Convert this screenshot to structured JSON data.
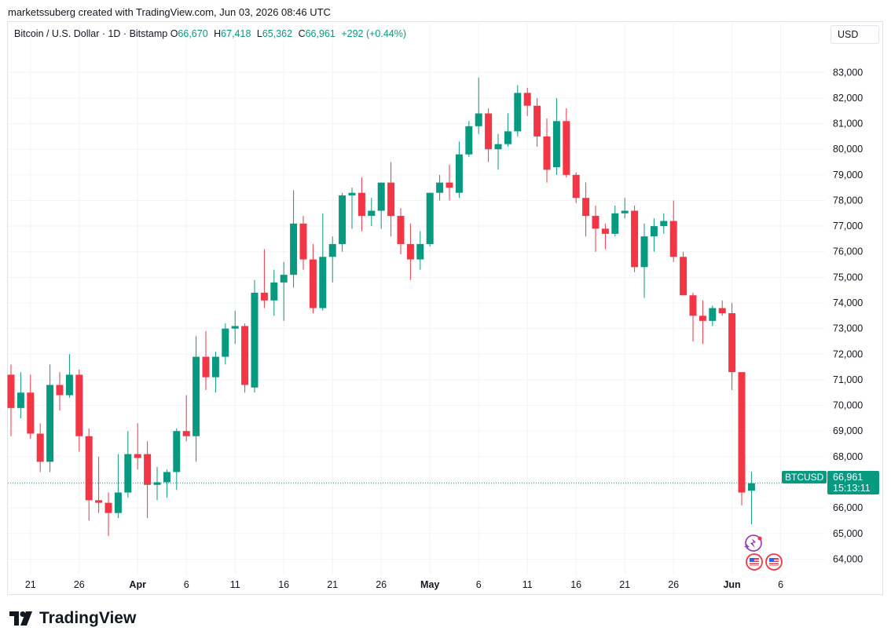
{
  "header": {
    "created_line": "marketssuberg created with TradingView.com, Jun 03, 2026 08:46 UTC"
  },
  "legend": {
    "symbol": "Bitcoin / U.S. Dollar · 1D · Bitstamp",
    "o_label": "O",
    "o_value": "66,670",
    "h_label": "H",
    "h_value": "67,418",
    "l_label": "L",
    "l_value": "65,362",
    "c_label": "C",
    "c_value": "66,961",
    "change": "+292 (+0.44%)"
  },
  "currency_button": "USD",
  "price_tag": {
    "symbol": "BTCUSD",
    "price": "66,961",
    "countdown": "15:13:11"
  },
  "brand": {
    "name": "TradingView"
  },
  "colors": {
    "up": "#089981",
    "down": "#f23645",
    "grid": "#f0f3fa",
    "text": "#131722"
  },
  "chart_data": {
    "type": "candlestick",
    "ylim": [
      63400,
      84050
    ],
    "y_ticks": [
      64000,
      65000,
      66000,
      67000,
      68000,
      69000,
      70000,
      71000,
      72000,
      73000,
      74000,
      75000,
      76000,
      77000,
      78000,
      79000,
      80000,
      81000,
      82000,
      83000
    ],
    "y_tick_labels": [
      "64,000",
      "65,000",
      "66,000",
      "67,000",
      "68,000",
      "69,000",
      "70,000",
      "71,000",
      "72,000",
      "73,000",
      "74,000",
      "75,000",
      "76,000",
      "77,000",
      "78,000",
      "79,000",
      "80,000",
      "81,000",
      "82,000",
      "83,000"
    ],
    "x_ticks": [
      {
        "index": 2,
        "label": "21",
        "bold": false
      },
      {
        "index": 7,
        "label": "26",
        "bold": false
      },
      {
        "index": 13,
        "label": "Apr",
        "bold": true
      },
      {
        "index": 18,
        "label": "6",
        "bold": false
      },
      {
        "index": 23,
        "label": "11",
        "bold": false
      },
      {
        "index": 28,
        "label": "16",
        "bold": false
      },
      {
        "index": 33,
        "label": "21",
        "bold": false
      },
      {
        "index": 38,
        "label": "26",
        "bold": false
      },
      {
        "index": 43,
        "label": "May",
        "bold": true
      },
      {
        "index": 48,
        "label": "6",
        "bold": false
      },
      {
        "index": 53,
        "label": "11",
        "bold": false
      },
      {
        "index": 58,
        "label": "16",
        "bold": false
      },
      {
        "index": 63,
        "label": "21",
        "bold": false
      },
      {
        "index": 68,
        "label": "26",
        "bold": false
      },
      {
        "index": 74,
        "label": "Jun",
        "bold": true
      },
      {
        "index": 79,
        "label": "6",
        "bold": false
      }
    ],
    "last_price": 66961,
    "candles": [
      {
        "o": 71200,
        "h": 71600,
        "l": 68800,
        "c": 69900
      },
      {
        "o": 69900,
        "h": 71300,
        "l": 69500,
        "c": 70500
      },
      {
        "o": 70500,
        "h": 71200,
        "l": 68700,
        "c": 68900
      },
      {
        "o": 68900,
        "h": 69300,
        "l": 67400,
        "c": 67800
      },
      {
        "o": 67800,
        "h": 71600,
        "l": 67400,
        "c": 70800
      },
      {
        "o": 70800,
        "h": 71300,
        "l": 69800,
        "c": 70400
      },
      {
        "o": 70400,
        "h": 72000,
        "l": 70300,
        "c": 71200
      },
      {
        "o": 71200,
        "h": 71400,
        "l": 68200,
        "c": 68800
      },
      {
        "o": 68800,
        "h": 69100,
        "l": 65500,
        "c": 66300
      },
      {
        "o": 66300,
        "h": 68000,
        "l": 65800,
        "c": 66200
      },
      {
        "o": 66200,
        "h": 66600,
        "l": 64900,
        "c": 65800
      },
      {
        "o": 65800,
        "h": 68100,
        "l": 65600,
        "c": 66600
      },
      {
        "o": 66600,
        "h": 69000,
        "l": 66400,
        "c": 68100
      },
      {
        "o": 68100,
        "h": 69300,
        "l": 67500,
        "c": 67950
      },
      {
        "o": 68100,
        "h": 68600,
        "l": 65600,
        "c": 66900
      },
      {
        "o": 66900,
        "h": 67600,
        "l": 66300,
        "c": 67000
      },
      {
        "o": 67000,
        "h": 67500,
        "l": 66400,
        "c": 67400
      },
      {
        "o": 67400,
        "h": 69100,
        "l": 66700,
        "c": 69000
      },
      {
        "o": 69000,
        "h": 70400,
        "l": 68600,
        "c": 68800
      },
      {
        "o": 68800,
        "h": 72700,
        "l": 67800,
        "c": 71900
      },
      {
        "o": 71900,
        "h": 72900,
        "l": 70600,
        "c": 71100
      },
      {
        "o": 71100,
        "h": 72100,
        "l": 70500,
        "c": 71900
      },
      {
        "o": 71900,
        "h": 73200,
        "l": 71600,
        "c": 73000
      },
      {
        "o": 73000,
        "h": 73700,
        "l": 72400,
        "c": 73100
      },
      {
        "o": 73100,
        "h": 73200,
        "l": 70500,
        "c": 70800
      },
      {
        "o": 70700,
        "h": 74900,
        "l": 70500,
        "c": 74400
      },
      {
        "o": 74400,
        "h": 76100,
        "l": 73800,
        "c": 74100
      },
      {
        "o": 74100,
        "h": 75300,
        "l": 73500,
        "c": 74800
      },
      {
        "o": 74800,
        "h": 75600,
        "l": 73300,
        "c": 75100
      },
      {
        "o": 75100,
        "h": 78400,
        "l": 74600,
        "c": 77100
      },
      {
        "o": 77100,
        "h": 77400,
        "l": 75300,
        "c": 75700
      },
      {
        "o": 75700,
        "h": 76300,
        "l": 73600,
        "c": 73800
      },
      {
        "o": 73800,
        "h": 77500,
        "l": 73700,
        "c": 75800
      },
      {
        "o": 75800,
        "h": 76600,
        "l": 74800,
        "c": 76300
      },
      {
        "o": 76300,
        "h": 78300,
        "l": 76000,
        "c": 78200
      },
      {
        "o": 78200,
        "h": 78500,
        "l": 76900,
        "c": 78300
      },
      {
        "o": 78300,
        "h": 78900,
        "l": 76800,
        "c": 77400
      },
      {
        "o": 77400,
        "h": 78100,
        "l": 77000,
        "c": 77600
      },
      {
        "o": 77600,
        "h": 78600,
        "l": 76900,
        "c": 78700
      },
      {
        "o": 78700,
        "h": 79500,
        "l": 76600,
        "c": 77400
      },
      {
        "o": 77400,
        "h": 77700,
        "l": 75900,
        "c": 76300
      },
      {
        "o": 76300,
        "h": 77100,
        "l": 74900,
        "c": 75700
      },
      {
        "o": 75700,
        "h": 76800,
        "l": 75300,
        "c": 76300
      },
      {
        "o": 76300,
        "h": 78300,
        "l": 76200,
        "c": 78300
      },
      {
        "o": 78300,
        "h": 79000,
        "l": 78000,
        "c": 78700
      },
      {
        "o": 78700,
        "h": 79400,
        "l": 78000,
        "c": 78500
      },
      {
        "o": 78300,
        "h": 80300,
        "l": 78100,
        "c": 79800
      },
      {
        "o": 79800,
        "h": 81100,
        "l": 79700,
        "c": 80900
      },
      {
        "o": 80900,
        "h": 82800,
        "l": 80600,
        "c": 81400
      },
      {
        "o": 81400,
        "h": 81600,
        "l": 79500,
        "c": 80000
      },
      {
        "o": 80000,
        "h": 80600,
        "l": 79200,
        "c": 80200
      },
      {
        "o": 80200,
        "h": 81400,
        "l": 80100,
        "c": 80700
      },
      {
        "o": 80700,
        "h": 82500,
        "l": 80500,
        "c": 82200
      },
      {
        "o": 82200,
        "h": 82400,
        "l": 81300,
        "c": 81700
      },
      {
        "o": 81700,
        "h": 82000,
        "l": 80100,
        "c": 80500
      },
      {
        "o": 80500,
        "h": 81200,
        "l": 78700,
        "c": 79200
      },
      {
        "o": 79300,
        "h": 82000,
        "l": 79000,
        "c": 81100
      },
      {
        "o": 81100,
        "h": 81600,
        "l": 78900,
        "c": 79000
      },
      {
        "o": 79000,
        "h": 79100,
        "l": 77900,
        "c": 78100
      },
      {
        "o": 78100,
        "h": 78700,
        "l": 76600,
        "c": 77400
      },
      {
        "o": 77400,
        "h": 77800,
        "l": 76000,
        "c": 76900
      },
      {
        "o": 76900,
        "h": 77100,
        "l": 76100,
        "c": 76700
      },
      {
        "o": 76700,
        "h": 77800,
        "l": 76600,
        "c": 77500
      },
      {
        "o": 77500,
        "h": 78100,
        "l": 77300,
        "c": 77600
      },
      {
        "o": 77600,
        "h": 77800,
        "l": 75200,
        "c": 75400
      },
      {
        "o": 75400,
        "h": 77100,
        "l": 74200,
        "c": 76600
      },
      {
        "o": 76600,
        "h": 77300,
        "l": 76000,
        "c": 77000
      },
      {
        "o": 77000,
        "h": 77500,
        "l": 76700,
        "c": 77200
      },
      {
        "o": 77200,
        "h": 78000,
        "l": 75600,
        "c": 75800
      },
      {
        "o": 75800,
        "h": 76000,
        "l": 74300,
        "c": 74300
      },
      {
        "o": 74300,
        "h": 74400,
        "l": 72500,
        "c": 73500
      },
      {
        "o": 73500,
        "h": 74100,
        "l": 72400,
        "c": 73300
      },
      {
        "o": 73300,
        "h": 73900,
        "l": 73100,
        "c": 73800
      },
      {
        "o": 73800,
        "h": 74100,
        "l": 73500,
        "c": 73600
      },
      {
        "o": 73600,
        "h": 74000,
        "l": 70600,
        "c": 71300
      },
      {
        "o": 71300,
        "h": 71300,
        "l": 66100,
        "c": 66600
      },
      {
        "o": 66670,
        "h": 67418,
        "l": 65362,
        "c": 66961
      }
    ]
  }
}
